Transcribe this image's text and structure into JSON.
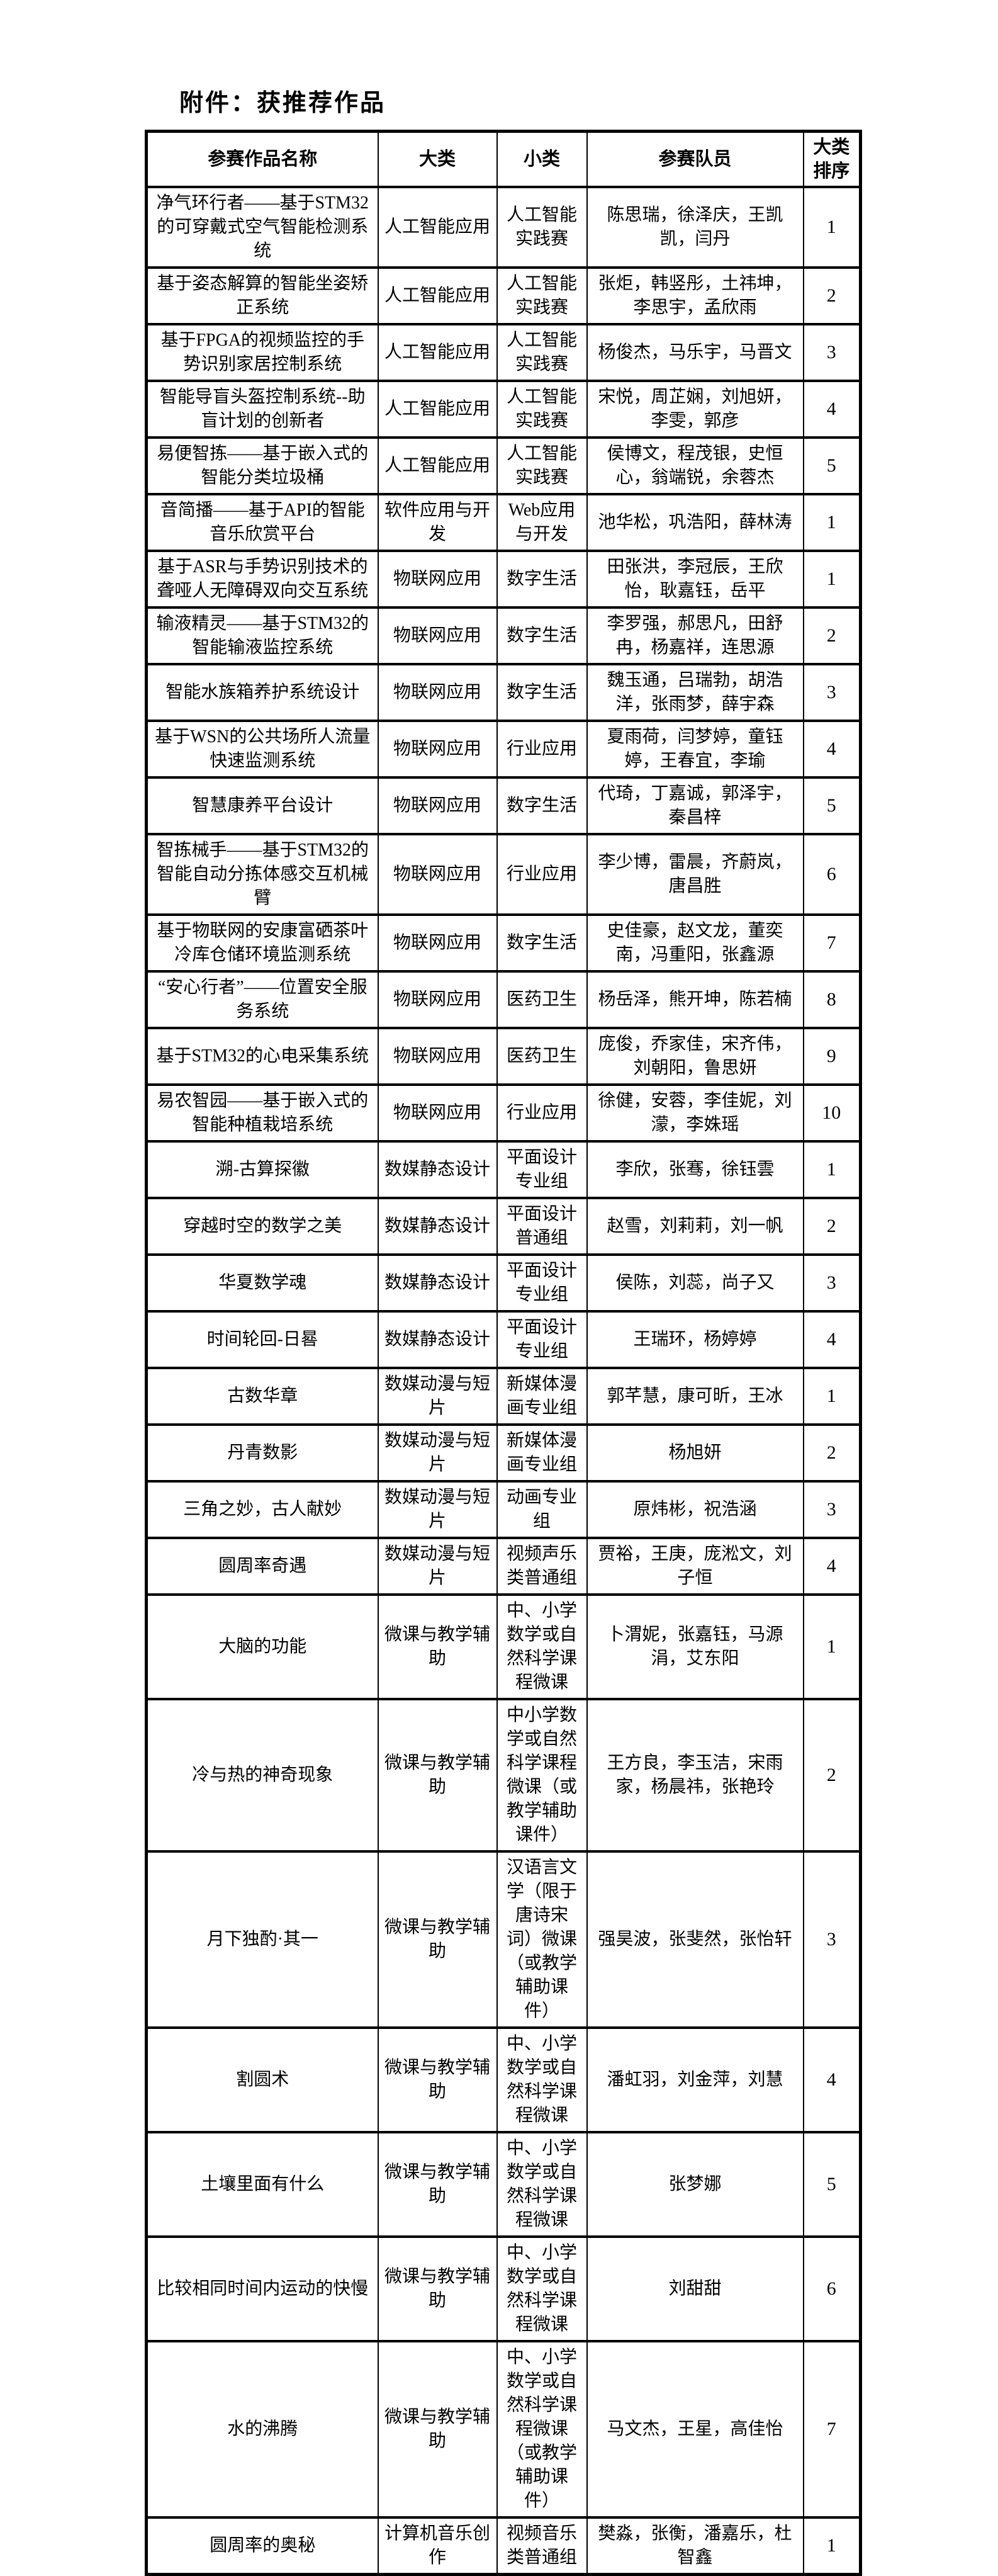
{
  "document": {
    "title": "附件：获推荐作品"
  },
  "table": {
    "columns": [
      "参赛作品名称",
      "大类",
      "小类",
      "参赛队员",
      "大类排序"
    ],
    "rows": [
      {
        "name": "净气环行者——基于STM32的可穿戴式空气智能检测系统",
        "category": "人工智能应用",
        "subcategory": "人工智能实践赛",
        "members": "陈思瑞，徐泽庆，王凯凯，闫丹",
        "rank": "1"
      },
      {
        "name": "基于姿态解算的智能坐姿矫正系统",
        "category": "人工智能应用",
        "subcategory": "人工智能实践赛",
        "members": "张炬，韩竖彤，土祎坤，李思宇，孟欣雨",
        "rank": "2"
      },
      {
        "name": "基于FPGA的视频监控的手势识别家居控制系统",
        "category": "人工智能应用",
        "subcategory": "人工智能实践赛",
        "members": "杨俊杰，马乐宇，马晋文",
        "rank": "3"
      },
      {
        "name": "智能导盲头盔控制系统--助盲计划的创新者",
        "category": "人工智能应用",
        "subcategory": "人工智能实践赛",
        "members": "宋悦，周芷娴，刘旭妍，李雯，郭彦",
        "rank": "4"
      },
      {
        "name": "易便智拣——基于嵌入式的智能分类垃圾桶",
        "category": "人工智能应用",
        "subcategory": "人工智能实践赛",
        "members": "侯博文，程茂银，史恒心，翁端锐，余蓉杰",
        "rank": "5"
      },
      {
        "name": "音简播——基于API的智能音乐欣赏平台",
        "category": "软件应用与开发",
        "subcategory": "Web应用与开发",
        "members": "池华松，巩浩阳，薛林涛",
        "rank": "1"
      },
      {
        "name": "基于ASR与手势识别技术的聋哑人无障碍双向交互系统",
        "category": "物联网应用",
        "subcategory": "数字生活",
        "members": "田张洪，李冠辰，王欣怡，耿嘉钰，岳平",
        "rank": "1"
      },
      {
        "name": "输液精灵——基于STM32的智能输液监控系统",
        "category": "物联网应用",
        "subcategory": "数字生活",
        "members": "李罗强，郝思凡，田舒冉，杨嘉祥，连思源",
        "rank": "2"
      },
      {
        "name": "智能水族箱养护系统设计",
        "category": "物联网应用",
        "subcategory": "数字生活",
        "members": "魏玉通，吕瑞勃，胡浩洋，张雨梦，薛宇森",
        "rank": "3"
      },
      {
        "name": "基于WSN的公共场所人流量快速监测系统",
        "category": "物联网应用",
        "subcategory": "行业应用",
        "members": "夏雨荷，闫梦婷，童钰婷，王春宜，李瑜",
        "rank": "4"
      },
      {
        "name": "智慧康养平台设计",
        "category": "物联网应用",
        "subcategory": "数字生活",
        "members": "代琦，丁嘉诚，郭泽宇，秦昌梓",
        "rank": "5"
      },
      {
        "name": "智拣械手——基于STM32的智能自动分拣体感交互机械臂",
        "category": "物联网应用",
        "subcategory": "行业应用",
        "members": "李少博，雷晨，齐蔚岚，唐昌胜",
        "rank": "6"
      },
      {
        "name": "基于物联网的安康富硒茶叶冷库仓储环境监测系统",
        "category": "物联网应用",
        "subcategory": "数字生活",
        "members": "史佳豪，赵文龙，董奕南，冯重阳，张鑫源",
        "rank": "7"
      },
      {
        "name": "“安心行者”——位置安全服务系统",
        "category": "物联网应用",
        "subcategory": "医药卫生",
        "members": "杨岳泽，熊开坤，陈若楠",
        "rank": "8"
      },
      {
        "name": "基于STM32的心电采集系统",
        "category": "物联网应用",
        "subcategory": "医药卫生",
        "members": "庞俊，乔家佳，宋齐伟，刘朝阳，鲁思妍",
        "rank": "9"
      },
      {
        "name": "易农智园——基于嵌入式的智能种植栽培系统",
        "category": "物联网应用",
        "subcategory": "行业应用",
        "members": "徐健，安蓉，李佳妮，刘濛，李姝瑶",
        "rank": "10"
      },
      {
        "name": "溯-古算探徽",
        "category": "数媒静态设计",
        "subcategory": "平面设计专业组",
        "members": "李欣，张骞，徐钰雲",
        "rank": "1"
      },
      {
        "name": "穿越时空的数学之美",
        "category": "数媒静态设计",
        "subcategory": "平面设计普通组",
        "members": "赵雪，刘莉莉，刘一帆",
        "rank": "2"
      },
      {
        "name": "华夏数学魂",
        "category": "数媒静态设计",
        "subcategory": "平面设计专业组",
        "members": "侯陈，刘蕊，尚子又",
        "rank": "3"
      },
      {
        "name": "时间轮回-日晷",
        "category": "数媒静态设计",
        "subcategory": "平面设计专业组",
        "members": "王瑞环，杨婷婷",
        "rank": "4"
      },
      {
        "name": "古数华章",
        "category": "数媒动漫与短片",
        "subcategory": "新媒体漫画专业组",
        "members": "郭芊慧，康可昕，王冰",
        "rank": "1"
      },
      {
        "name": "丹青数影",
        "category": "数媒动漫与短片",
        "subcategory": "新媒体漫画专业组",
        "members": "杨旭妍",
        "rank": "2"
      },
      {
        "name": "三角之妙，古人献妙",
        "category": "数媒动漫与短片",
        "subcategory": "动画专业组",
        "members": "原炜彬，祝浩涵",
        "rank": "3"
      },
      {
        "name": "圆周率奇遇",
        "category": "数媒动漫与短片",
        "subcategory": "视频声乐类普通组",
        "members": "贾裕，王庚，庞淞文，刘子恒",
        "rank": "4"
      },
      {
        "name": "大脑的功能",
        "category": "微课与教学辅助",
        "subcategory": "中、小学数学或自然科学课程微课",
        "members": "卜渭妮，张嘉钰，马源涓，艾东阳",
        "rank": "1"
      },
      {
        "name": "冷与热的神奇现象",
        "category": "微课与教学辅助",
        "subcategory": "中小学数学或自然科学课程微课（或教学辅助课件）",
        "members": "王方良，李玉洁，宋雨家，杨晨祎，张艳玲",
        "rank": "2"
      },
      {
        "name": "月下独酌·其一",
        "category": "微课与教学辅助",
        "subcategory": "汉语言文学（限于唐诗宋词）微课（或教学辅助课件）",
        "members": "强昊波，张斐然，张怡轩",
        "rank": "3"
      },
      {
        "name": "割圆术",
        "category": "微课与教学辅助",
        "subcategory": "中、小学数学或自然科学课程微课",
        "members": "潘虹羽，刘金萍，刘慧",
        "rank": "4"
      },
      {
        "name": "土壤里面有什么",
        "category": "微课与教学辅助",
        "subcategory": "中、小学数学或自然科学课程微课",
        "members": "张梦娜",
        "rank": "5"
      },
      {
        "name": "比较相同时间内运动的快慢",
        "category": "微课与教学辅助",
        "subcategory": "中、小学数学或自然科学课程微课",
        "members": "刘甜甜",
        "rank": "6"
      },
      {
        "name": "水的沸腾",
        "category": "微课与教学辅助",
        "subcategory": "中、小学数学或自然科学课程微课（或教学辅助课件）",
        "members": "马文杰，王星，高佳怡",
        "rank": "7"
      },
      {
        "name": "圆周率的奥秘",
        "category": "计算机音乐创作",
        "subcategory": "视频音乐类普通组",
        "members": "樊淼，张衡，潘嘉乐，杜智鑫",
        "rank": "1"
      }
    ]
  }
}
